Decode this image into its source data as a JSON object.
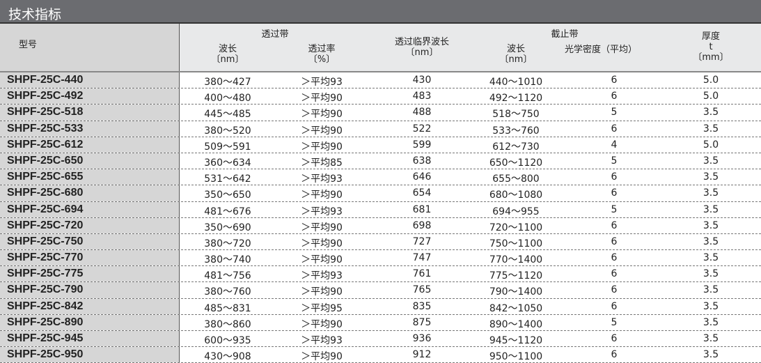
{
  "title": "技术指标",
  "headers": {
    "model": "型号",
    "pass_band": "透过带",
    "pass_wl": "波长",
    "pass_wl_unit": "〔nm〕",
    "trans": "透过率",
    "trans_unit": "〔%〕",
    "critical": "透过临界波长",
    "critical_unit": "〔nm〕",
    "cut_band": "截止带",
    "cut_wl": "波长",
    "cut_wl_unit": "〔nm〕",
    "od": "光学密度（平均）",
    "thick": "厚度",
    "thick_t": "t",
    "thick_unit": "〔mm〕"
  },
  "rows": [
    [
      "SHPF-25C-440",
      "380～427",
      "＞平均93",
      "430",
      "440～1010",
      "6",
      "5.0"
    ],
    [
      "SHPF-25C-492",
      "400～480",
      "＞平均90",
      "483",
      "492～1120",
      "6",
      "5.0"
    ],
    [
      "SHPF-25C-518",
      "445～485",
      "＞平均90",
      "488",
      "518～750",
      "5",
      "3.5"
    ],
    [
      "SHPF-25C-533",
      "380～520",
      "＞平均90",
      "522",
      "533～760",
      "6",
      "3.5"
    ],
    [
      "SHPF-25C-612",
      "509～591",
      "＞平均90",
      "599",
      "612～730",
      "4",
      "5.0"
    ],
    [
      "SHPF-25C-650",
      "360～634",
      "＞平均85",
      "638",
      "650～1120",
      "5",
      "3.5"
    ],
    [
      "SHPF-25C-655",
      "531～642",
      "＞平均93",
      "646",
      "655～800",
      "6",
      "3.5"
    ],
    [
      "SHPF-25C-680",
      "350～650",
      "＞平均90",
      "654",
      "680～1080",
      "6",
      "3.5"
    ],
    [
      "SHPF-25C-694",
      "481～676",
      "＞平均93",
      "681",
      "694～955",
      "5",
      "3.5"
    ],
    [
      "SHPF-25C-720",
      "350～690",
      "＞平均90",
      "698",
      "720～1100",
      "6",
      "3.5"
    ],
    [
      "SHPF-25C-750",
      "380～720",
      "＞平均90",
      "727",
      "750～1100",
      "6",
      "3.5"
    ],
    [
      "SHPF-25C-770",
      "380～740",
      "＞平均90",
      "747",
      "770～1400",
      "6",
      "3.5"
    ],
    [
      "SHPF-25C-775",
      "481～756",
      "＞平均93",
      "761",
      "775～1120",
      "6",
      "3.5"
    ],
    [
      "SHPF-25C-790",
      "380～760",
      "＞平均90",
      "765",
      "790～1400",
      "6",
      "3.5"
    ],
    [
      "SHPF-25C-842",
      "485～831",
      "＞平均95",
      "835",
      "842～1050",
      "6",
      "3.5"
    ],
    [
      "SHPF-25C-890",
      "380～860",
      "＞平均90",
      "875",
      "890～1400",
      "5",
      "3.5"
    ],
    [
      "SHPF-25C-945",
      "600～935",
      "＞平均93",
      "936",
      "945～1120",
      "6",
      "3.5"
    ],
    [
      "SHPF-25C-950",
      "430～908",
      "＞平均90",
      "912",
      "950～1100",
      "6",
      "3.5"
    ]
  ]
}
